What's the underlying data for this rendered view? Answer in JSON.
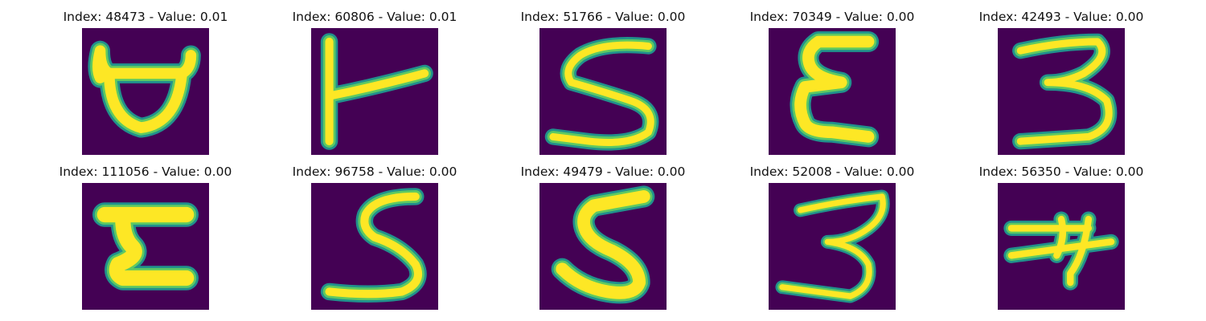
{
  "figure": {
    "background": "#ffffff",
    "colors": {
      "cell_background": "#440154",
      "stroke_outer": "#21918c",
      "stroke_mid": "#5ec962",
      "stroke_core": "#fde725"
    },
    "panels": [
      {
        "index": "48473",
        "value": "0.01",
        "title": "Index: 48473 - Value: 0.01",
        "glyph": "open-cup-shape"
      },
      {
        "index": "60806",
        "value": "0.01",
        "title": "Index: 60806 - Value: 0.01",
        "glyph": "vertical-line-with-arm"
      },
      {
        "index": "51766",
        "value": "0.00",
        "title": "Index: 51766 - Value: 0.00",
        "glyph": "digit-5"
      },
      {
        "index": "70349",
        "value": "0.00",
        "title": "Index: 70349 - Value: 0.00",
        "glyph": "epsilon-shape"
      },
      {
        "index": "42493",
        "value": "0.00",
        "title": "Index: 42493 - Value: 0.00",
        "glyph": "digit-3"
      },
      {
        "index": "111056",
        "value": "0.00",
        "title": "Index: 111056 - Value: 0.00",
        "glyph": "z-like-shape"
      },
      {
        "index": "96758",
        "value": "0.00",
        "title": "Index: 96758 - Value: 0.00",
        "glyph": "digit-5"
      },
      {
        "index": "49479",
        "value": "0.00",
        "title": "Index: 49479 - Value: 0.00",
        "glyph": "digit-5"
      },
      {
        "index": "52008",
        "value": "0.00",
        "title": "Index: 52008 - Value: 0.00",
        "glyph": "digit-3"
      },
      {
        "index": "56350",
        "value": "0.00",
        "title": "Index: 56350 - Value: 0.00",
        "glyph": "crossed-4-shape"
      }
    ]
  }
}
